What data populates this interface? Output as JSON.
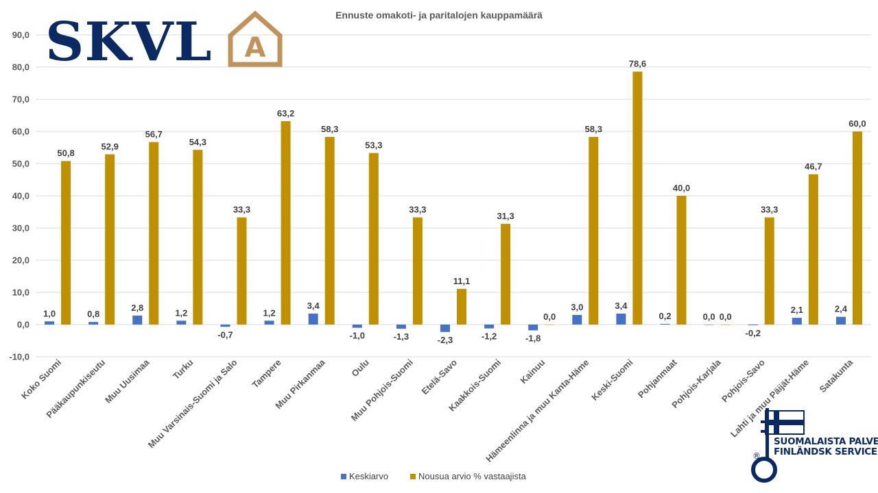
{
  "logo": {
    "text": "SKVL",
    "icon_letter": "A"
  },
  "brand_badge": {
    "line1": "SUOMALAISTA PALVELUA",
    "line2": "FINLÄNDSK SERVICE",
    "mark": "®"
  },
  "colors": {
    "series1": "#4472C4",
    "series2": "#BF9000",
    "grid": "#D9D9D9",
    "text": "#595959",
    "logo_navy": "#0b2a63",
    "logo_gold": "#c0935a"
  },
  "chart_data": {
    "type": "bar",
    "title": "Ennuste omakoti- ja paritalojen kauppamäärä",
    "categories": [
      "Koko Suomi",
      "Pääkaupunkiseutu",
      "Muu Uusimaa",
      "Turku",
      "Muu Varsinais-Suomi ja Salo",
      "Tampere",
      "Muu Pirkanmaa",
      "Oulu",
      "Muu Pohjois-Suomi",
      "Etelä-Savo",
      "Kaakkois-Suomi",
      "Kainuu",
      "Hämeenlinna ja muu Kanta-Häme",
      "Keski-Suomi",
      "Pohjanmaat",
      "Pohjois-Karjala",
      "Pohjois-Savo",
      "Lahti ja muu Päijät-Häme",
      "Satakunta"
    ],
    "series": [
      {
        "name": "Keskiarvo",
        "color": "#4472C4",
        "values": [
          1.0,
          0.8,
          2.8,
          1.2,
          -0.7,
          1.2,
          3.4,
          -1.0,
          -1.3,
          -2.3,
          -1.2,
          -1.8,
          3.0,
          3.4,
          0.2,
          0.0,
          -0.2,
          2.1,
          2.4
        ],
        "labels": [
          "1,0",
          "0,8",
          "2,8",
          "1,2",
          "-0,7",
          "1,2",
          "3,4",
          "-1,0",
          "-1,3",
          "-2,3",
          "-1,2",
          "-1,8",
          "3,0",
          "3,4",
          "0,2",
          "0,0",
          "-0,2",
          "2,1",
          "2,4"
        ]
      },
      {
        "name": "Nousua arvio % vastaajista",
        "color": "#BF9000",
        "values": [
          50.8,
          52.9,
          56.7,
          54.3,
          33.3,
          63.2,
          58.3,
          53.3,
          33.3,
          11.1,
          31.3,
          0.0,
          58.3,
          78.6,
          40.0,
          0.0,
          33.3,
          46.7,
          60.0
        ],
        "labels": [
          "50,8",
          "52,9",
          "56,7",
          "54,3",
          "33,3",
          "63,2",
          "58,3",
          "53,3",
          "33,3",
          "11,1",
          "31,3",
          "0,0",
          "58,3",
          "78,6",
          "40,0",
          "0,0",
          "33,3",
          "46,7",
          "60,0"
        ]
      }
    ],
    "ylim": [
      -10,
      90
    ],
    "yticks": [
      "-10,0",
      "0,0",
      "10,0",
      "20,0",
      "30,0",
      "40,0",
      "50,0",
      "60,0",
      "70,0",
      "80,0",
      "90,0"
    ],
    "grid": true,
    "legend": "bottom"
  }
}
